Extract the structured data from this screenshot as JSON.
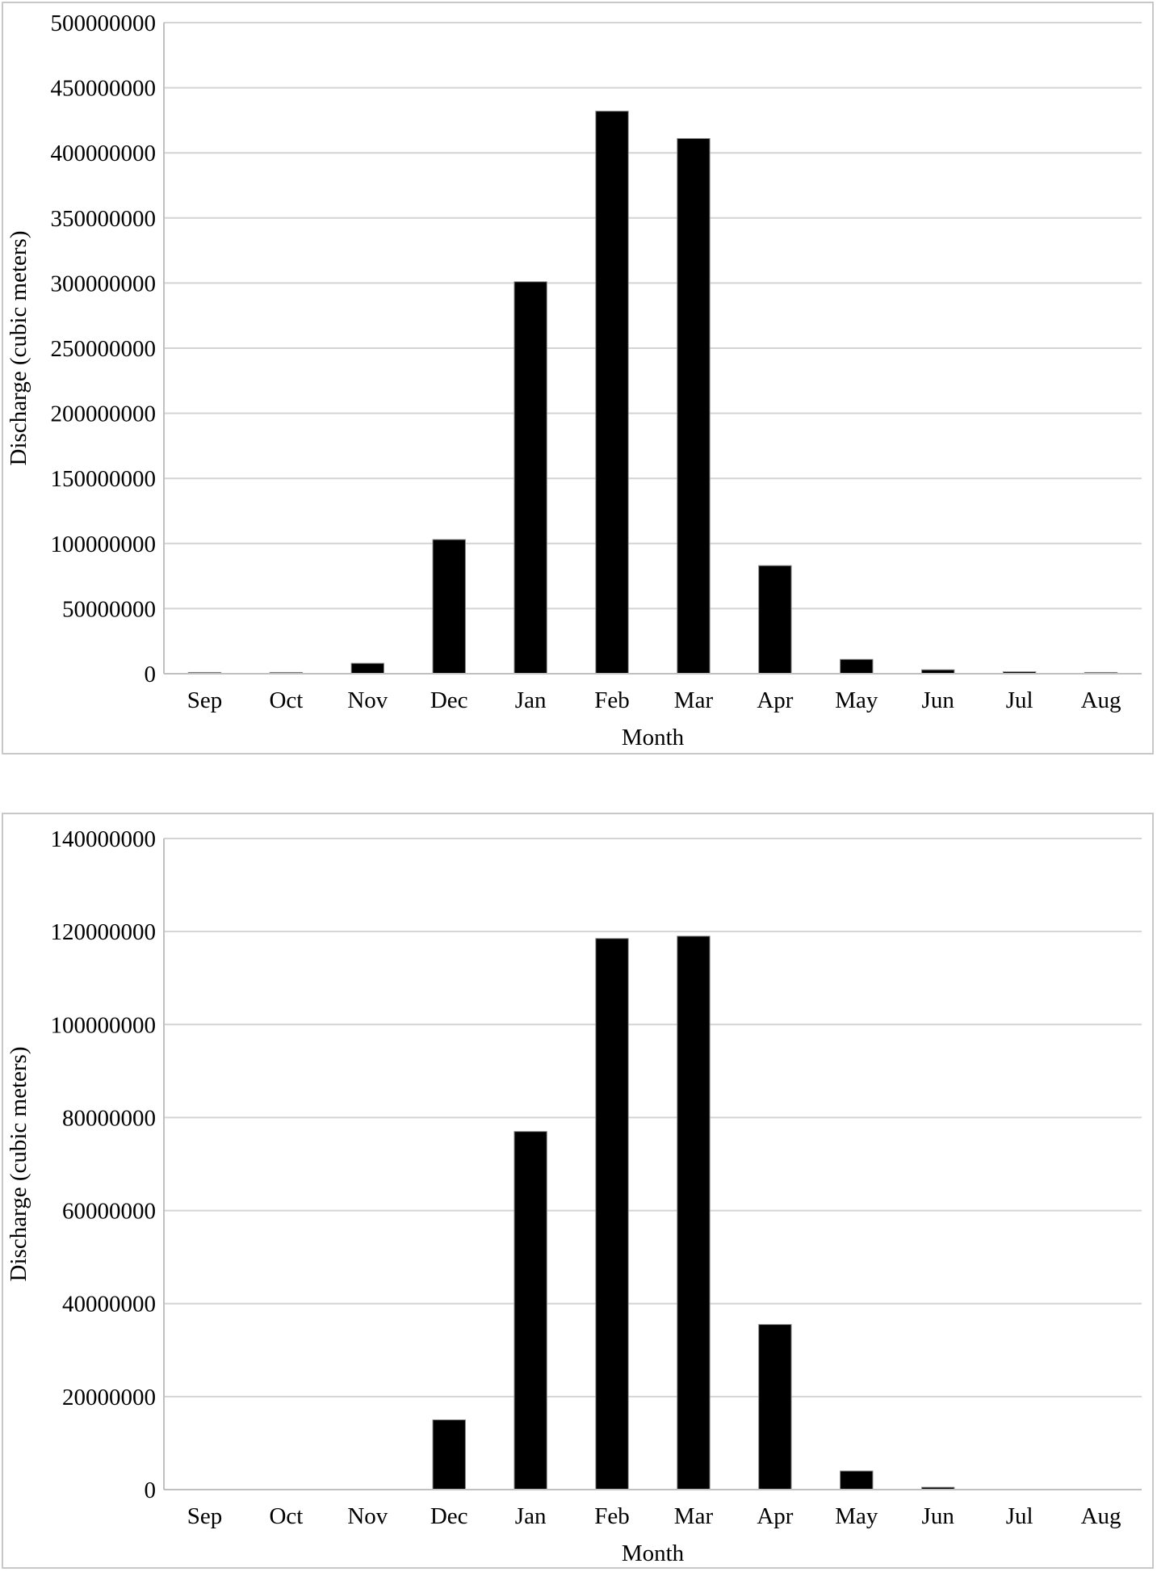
{
  "chart_data": [
    {
      "type": "bar",
      "title": "",
      "xlabel": "Month",
      "ylabel": "Discharge (cubic meters)",
      "categories": [
        "Sep",
        "Oct",
        "Nov",
        "Dec",
        "Jan",
        "Feb",
        "Mar",
        "Apr",
        "May",
        "Jun",
        "Jul",
        "Aug"
      ],
      "values": [
        1000000,
        1000000,
        8000000,
        103000000,
        301000000,
        432000000,
        411000000,
        83000000,
        11000000,
        3000000,
        1500000,
        1000000
      ],
      "ylim": [
        0,
        500000000
      ],
      "yticks": [
        "0",
        "50000000",
        "100000000",
        "150000000",
        "200000000",
        "250000000",
        "300000000",
        "350000000",
        "400000000",
        "450000000",
        "500000000"
      ],
      "grid": true,
      "legend": "none",
      "bar_color": "#000000"
    },
    {
      "type": "bar",
      "title": "",
      "xlabel": "Month",
      "ylabel": "Discharge (cubic meters)",
      "categories": [
        "Sep",
        "Oct",
        "Nov",
        "Dec",
        "Jan",
        "Feb",
        "Mar",
        "Apr",
        "May",
        "Jun",
        "Jul",
        "Aug"
      ],
      "values": [
        0,
        0,
        0,
        15000000,
        77000000,
        118500000,
        119000000,
        35500000,
        4000000,
        500000,
        0,
        0
      ],
      "ylim": [
        0,
        140000000
      ],
      "yticks": [
        "0",
        "20000000",
        "40000000",
        "60000000",
        "80000000",
        "100000000",
        "120000000",
        "140000000"
      ],
      "grid": true,
      "legend": "none",
      "bar_color": "#000000"
    }
  ]
}
